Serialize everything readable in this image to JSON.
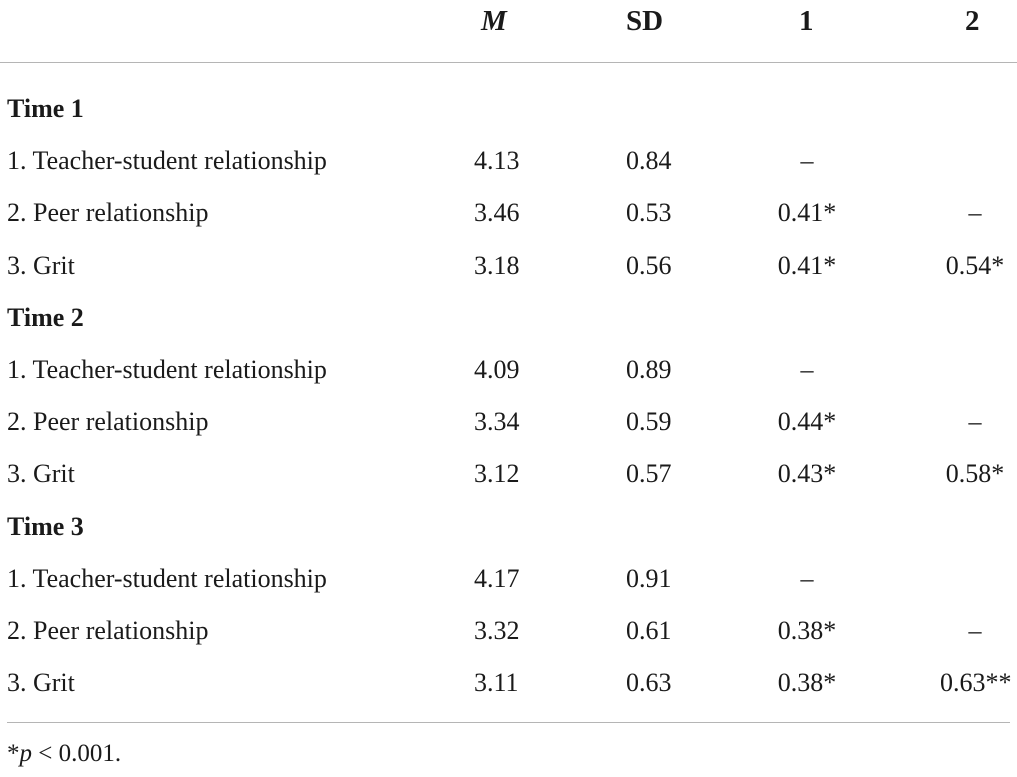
{
  "header": {
    "col_m": "M",
    "col_sd": "SD",
    "col_1": "1",
    "col_2": "2"
  },
  "rows": [
    {
      "type": "section",
      "label": "Time 1"
    },
    {
      "type": "data",
      "label": "1. Teacher-student relationship",
      "m": "4.13",
      "sd": "0.84",
      "c1": "–",
      "c2": ""
    },
    {
      "type": "data",
      "label": "2. Peer relationship",
      "m": "3.46",
      "sd": "0.53",
      "c1": "0.41*",
      "c2": "–"
    },
    {
      "type": "data",
      "label": "3. Grit",
      "m": "3.18",
      "sd": "0.56",
      "c1": "0.41*",
      "c2": "0.54*"
    },
    {
      "type": "section",
      "label": "Time 2"
    },
    {
      "type": "data",
      "label": "1. Teacher-student relationship",
      "m": "4.09",
      "sd": "0.89",
      "c1": "–",
      "c2": ""
    },
    {
      "type": "data",
      "label": "2. Peer relationship",
      "m": "3.34",
      "sd": "0.59",
      "c1": "0.44*",
      "c2": "–"
    },
    {
      "type": "data",
      "label": "3. Grit",
      "m": "3.12",
      "sd": "0.57",
      "c1": "0.43*",
      "c2": "0.58*"
    },
    {
      "type": "section",
      "label": "Time 3"
    },
    {
      "type": "data",
      "label": "1. Teacher-student relationship",
      "m": "4.17",
      "sd": "0.91",
      "c1": "–",
      "c2": ""
    },
    {
      "type": "data",
      "label": "2. Peer relationship",
      "m": "3.32",
      "sd": "0.61",
      "c1": "0.38*",
      "c2": "–"
    },
    {
      "type": "data",
      "label": "3. Grit",
      "m": "3.11",
      "sd": "0.63",
      "c1": "0.38*",
      "c2": "0.63**"
    }
  ],
  "footnote": {
    "star": "*",
    "p": "p",
    "rest": " < 0.001."
  }
}
